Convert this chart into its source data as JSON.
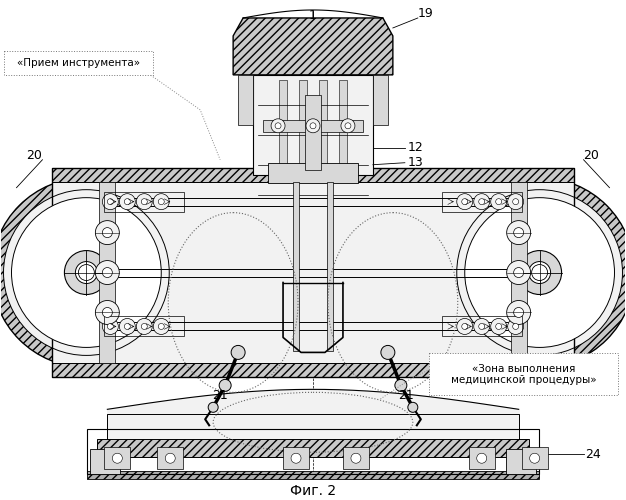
{
  "title": "Фиг. 2",
  "bg_color": "#ffffff",
  "label_1": "1",
  "label_12": "12",
  "label_13": "13",
  "label_19": "19",
  "label_20_left": "20",
  "label_20_right": "20",
  "label_21_left": "21",
  "label_21_right": "21",
  "label_24": "24",
  "text_priem": "«Прием инструмента»",
  "text_zona": "«Зона выполнения\nмедицинской процедуры»",
  "lc": "#000000",
  "fill_light": "#f2f2f2",
  "fill_mid": "#d8d8d8",
  "fill_dark": "#b0b0b0",
  "fill_hatch": "#c8c8c8",
  "dot_color": "#666666"
}
